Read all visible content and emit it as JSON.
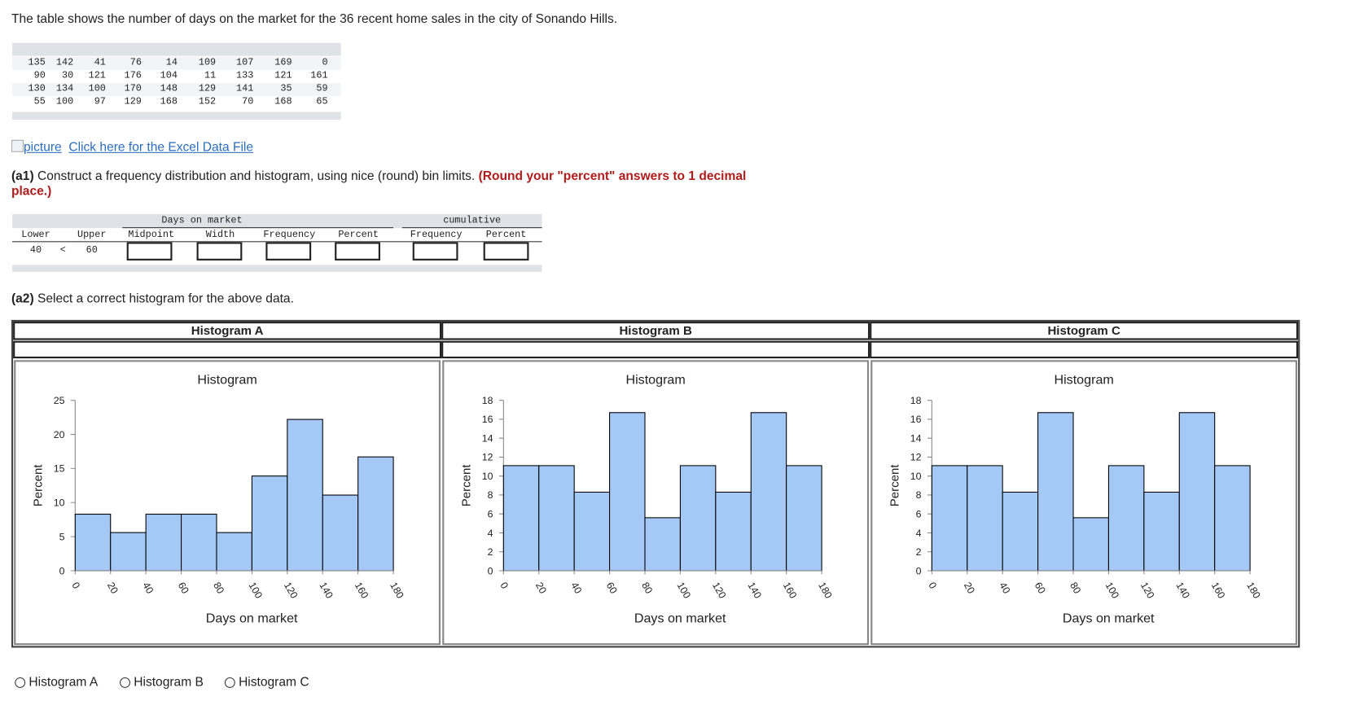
{
  "intro": "The table shows the number of days on the market for the 36 recent home sales in the city of Sonando Hills.",
  "data_table": {
    "rows": [
      [
        135,
        142,
        41,
        76,
        14,
        109,
        107,
        169,
        0
      ],
      [
        90,
        30,
        121,
        176,
        104,
        11,
        133,
        121,
        161
      ],
      [
        130,
        134,
        100,
        170,
        148,
        129,
        141,
        35,
        59
      ],
      [
        55,
        100,
        97,
        129,
        168,
        152,
        70,
        168,
        65
      ]
    ]
  },
  "link": {
    "alt": "picture",
    "text": "Click here for the Excel Data File"
  },
  "a1": {
    "label": "(a1)",
    "text": "Construct a frequency distribution and histogram, using nice (round) bin limits.",
    "note": "(Round your \"percent\" answers to 1 decimal place.)"
  },
  "freq_table": {
    "group_headers": [
      "Days on market",
      "cumulative"
    ],
    "columns": [
      "Lower",
      "Upper",
      "Midpoint",
      "Width",
      "Frequency",
      "Percent",
      "Frequency",
      "Percent"
    ],
    "row": [
      40,
      "<",
      60
    ]
  },
  "a2": {
    "label": "(a2)",
    "text": "Select a correct histogram for the above data."
  },
  "histogram_headers": [
    "Histogram A",
    "Histogram B",
    "Histogram C"
  ],
  "options": [
    "Histogram A",
    "Histogram B",
    "Histogram C"
  ],
  "chart_data": [
    {
      "type": "histogram",
      "title": "Histogram",
      "x_label": "Days on market",
      "y_label": "Percent",
      "bins": [
        0,
        20,
        40,
        60,
        80,
        100,
        120,
        140,
        160,
        180
      ],
      "values": [
        8.3,
        5.6,
        8.3,
        8.3,
        5.6,
        13.9,
        22.2,
        11.1,
        16.7
      ],
      "color": "#a4c9f7",
      "xlim": [
        0,
        180
      ],
      "xticks": [
        0,
        20,
        40,
        60,
        80,
        100,
        120,
        140,
        160,
        180
      ],
      "ylim": [
        0,
        25
      ],
      "yticks": [
        0,
        5,
        10,
        15,
        20,
        25
      ]
    },
    {
      "type": "histogram",
      "title": "Histogram",
      "x_label": "Days on market",
      "y_label": "Percent",
      "bins": [
        0,
        20,
        40,
        60,
        80,
        100,
        120,
        140,
        160,
        180
      ],
      "values": [
        11.1,
        11.1,
        8.3,
        16.7,
        5.6,
        11.1,
        8.3,
        16.7,
        11.1
      ],
      "color": "#a4c9f7",
      "xlim": [
        0,
        180
      ],
      "xticks": [
        0,
        20,
        40,
        60,
        80,
        100,
        120,
        140,
        160,
        180
      ],
      "ylim": [
        0,
        18
      ],
      "yticks": [
        0,
        2,
        4,
        6,
        8,
        10,
        12,
        14,
        16,
        18
      ]
    },
    {
      "type": "histogram",
      "title": "Histogram",
      "x_label": "Days on market",
      "y_label": "Percent",
      "bins": [
        0,
        20,
        40,
        60,
        80,
        100,
        120,
        140,
        160,
        180
      ],
      "values": [
        11.1,
        11.1,
        8.3,
        16.7,
        5.6,
        11.1,
        8.3,
        16.7,
        11.1
      ],
      "color": "#a4c9f7",
      "xlim": [
        0,
        180
      ],
      "xticks": [
        0,
        20,
        40,
        60,
        80,
        100,
        120,
        140,
        160,
        180
      ],
      "ylim": [
        0,
        18
      ],
      "yticks": [
        0,
        2,
        4,
        6,
        8,
        10,
        12,
        14,
        16,
        18
      ]
    }
  ]
}
